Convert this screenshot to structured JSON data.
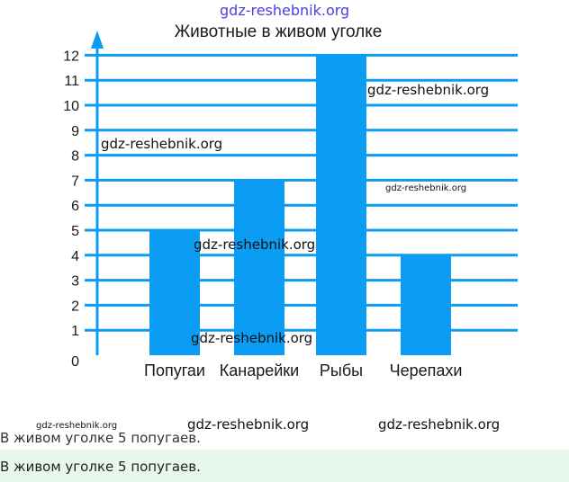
{
  "watermark": "gdz-reshebnik.org",
  "chart_data": {
    "type": "bar",
    "title": "Животные в живом уголке",
    "categories": [
      "Попугаи",
      "Канарейки",
      "Рыбы",
      "Черепахи"
    ],
    "values": [
      5,
      7,
      12,
      4
    ],
    "ylim": [
      0,
      12
    ],
    "yticks": [
      "0",
      "1",
      "2",
      "3",
      "4",
      "5",
      "6",
      "7",
      "8",
      "9",
      "10",
      "11",
      "12"
    ],
    "grid": true,
    "bar_color": "#0b9cf3",
    "grid_color": "#0b9cf3"
  },
  "caption": "В живом уголке 5 попугаев.",
  "answer": "В живом уголке 5 попугаев."
}
